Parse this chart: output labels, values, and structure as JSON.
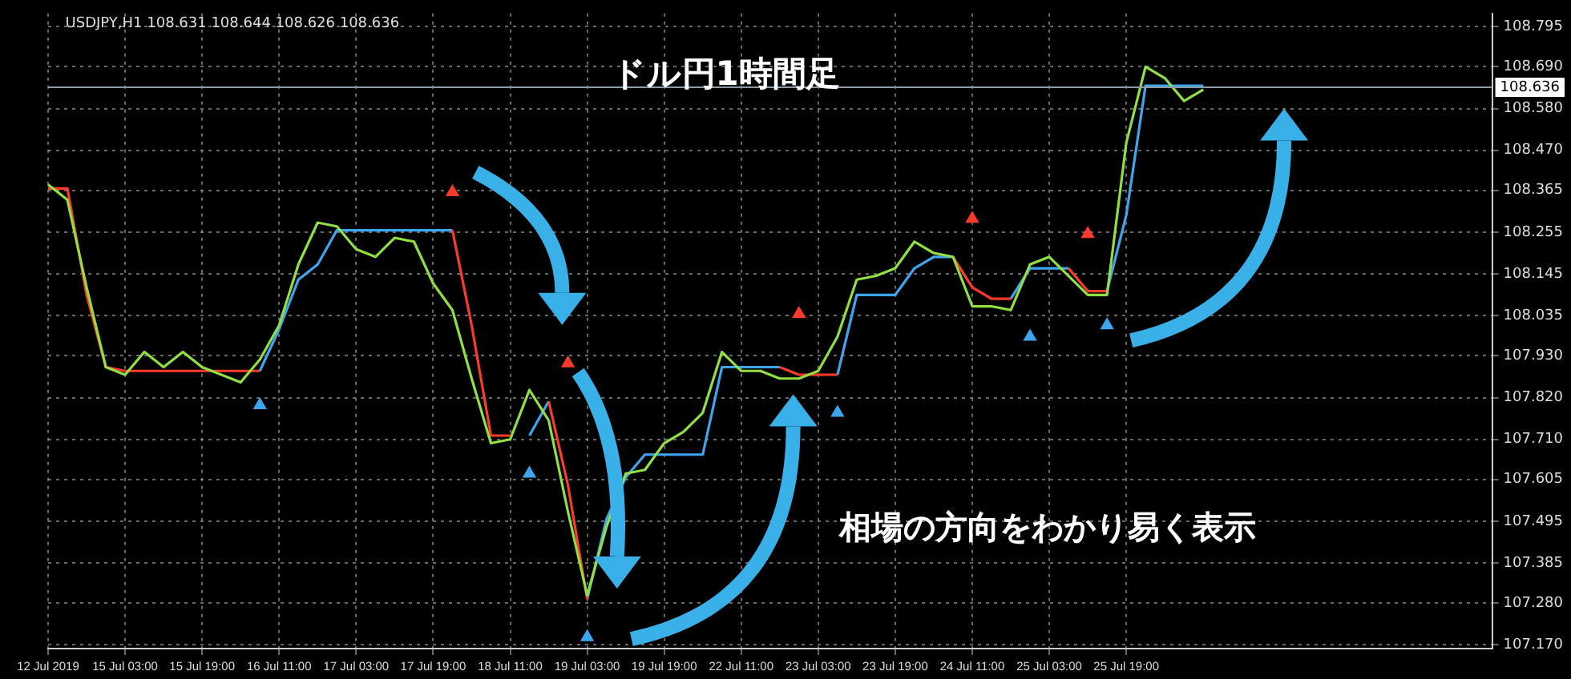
{
  "chart_data": {
    "type": "line",
    "title": "ドル円1時間足",
    "annotations": [
      "USDJPY,H1  108.631 108.644 108.626 108.636",
      "相場の方向をわかり易く表示"
    ],
    "categories": [
      "12 Jul 2019",
      null,
      null,
      null,
      "15 Jul 03:00",
      null,
      null,
      null,
      "15 Jul 19:00",
      null,
      null,
      null,
      "16 Jul 11:00",
      null,
      null,
      null,
      "17 Jul 03:00",
      null,
      null,
      null,
      "17 Jul 19:00",
      null,
      null,
      null,
      "18 Jul 11:00",
      null,
      null,
      null,
      "19 Jul 03:00",
      null,
      null,
      null,
      "19 Jul 19:00",
      null,
      null,
      null,
      "22 Jul 11:00",
      null,
      null,
      null,
      "23 Jul 03:00",
      null,
      null,
      null,
      "23 Jul 19:00",
      null,
      null,
      null,
      "24 Jul 11:00",
      null,
      null,
      null,
      "25 Jul 03:00",
      null,
      null,
      null,
      "25 Jul 19:00",
      null,
      null,
      null,
      null,
      null,
      null,
      null,
      null,
      null,
      null,
      null,
      null,
      null,
      null,
      null,
      null,
      null,
      null,
      null
    ],
    "series": [
      {
        "color": "#8fe040",
        "values": [
          108.38,
          108.34,
          108.11,
          107.9,
          107.88,
          107.94,
          107.9,
          107.94,
          107.9,
          107.88,
          107.86,
          107.92,
          108.01,
          108.17,
          108.28,
          108.27,
          108.21,
          108.19,
          108.24,
          108.23,
          108.12,
          108.05,
          107.87,
          107.7,
          107.71,
          107.84,
          107.76,
          107.52,
          107.3,
          107.48,
          107.62,
          107.63,
          107.7,
          107.73,
          107.78,
          107.94,
          107.89,
          107.89,
          107.87,
          107.87,
          107.89,
          107.98,
          108.13,
          108.14,
          108.16,
          108.23,
          108.2,
          108.19,
          108.06,
          108.06,
          108.05,
          108.17,
          108.19,
          108.14,
          108.09,
          108.09,
          108.49,
          108.69,
          108.66,
          108.6,
          108.63,
          null,
          null,
          null,
          null,
          null,
          null,
          null,
          null,
          null,
          null,
          null,
          null,
          null,
          null,
          null
        ]
      },
      {
        "color": "#ff3a2a",
        "values": [
          108.37,
          108.37,
          108.09,
          107.9,
          107.89,
          107.89,
          107.89,
          107.89,
          107.89,
          107.89,
          107.89,
          107.89,
          null,
          null,
          null,
          null,
          null,
          null,
          null,
          null,
          null,
          108.26,
          108.01,
          107.72,
          107.72,
          null,
          107.81,
          107.59,
          107.29,
          null,
          null,
          null,
          null,
          null,
          null,
          null,
          null,
          null,
          107.9,
          107.88,
          107.88,
          107.88,
          null,
          null,
          null,
          null,
          null,
          108.19,
          108.11,
          108.08,
          108.08,
          null,
          null,
          108.16,
          108.1,
          108.1,
          null,
          null,
          null,
          null,
          null,
          null,
          null,
          null,
          null,
          null,
          null,
          null,
          null,
          null,
          null,
          null,
          null,
          null,
          null,
          null
        ]
      },
      {
        "color": "#3ea6f0",
        "values": [
          null,
          null,
          null,
          null,
          null,
          null,
          null,
          null,
          null,
          null,
          null,
          107.89,
          108.0,
          108.13,
          108.17,
          108.26,
          108.26,
          108.26,
          108.26,
          108.26,
          108.26,
          108.26,
          null,
          null,
          null,
          107.72,
          107.81,
          null,
          107.29,
          107.5,
          107.61,
          107.67,
          107.67,
          107.67,
          107.67,
          107.9,
          107.9,
          107.9,
          107.9,
          null,
          null,
          107.88,
          108.09,
          108.09,
          108.09,
          108.16,
          108.19,
          108.19,
          null,
          null,
          108.08,
          108.16,
          108.16,
          108.16,
          null,
          108.1,
          108.3,
          108.64,
          108.64,
          108.64,
          108.64,
          null,
          null,
          null,
          null,
          null,
          null,
          null,
          null,
          null,
          null,
          null,
          null,
          null,
          null,
          null
        ]
      },
      {
        "type": "scatter",
        "marker": "triangle",
        "color": "#3ea6f0",
        "values": [
          null,
          null,
          null,
          null,
          null,
          null,
          null,
          null,
          null,
          null,
          null,
          107.8,
          null,
          null,
          null,
          null,
          null,
          null,
          null,
          null,
          null,
          null,
          null,
          null,
          null,
          107.62,
          null,
          null,
          107.19,
          null,
          null,
          null,
          null,
          null,
          null,
          null,
          null,
          null,
          null,
          null,
          null,
          107.78,
          null,
          null,
          null,
          null,
          null,
          null,
          null,
          null,
          null,
          107.98,
          null,
          null,
          null,
          108.01,
          null,
          null,
          null,
          null,
          null,
          null,
          null,
          null,
          null,
          null,
          null,
          null,
          null,
          null,
          null,
          null,
          null,
          null,
          null,
          null
        ]
      },
      {
        "type": "scatter",
        "marker": "triangle",
        "color": "#ff3a2a",
        "values": [
          null,
          null,
          null,
          null,
          null,
          null,
          null,
          null,
          null,
          null,
          null,
          null,
          null,
          null,
          null,
          null,
          null,
          null,
          null,
          null,
          null,
          108.36,
          null,
          null,
          null,
          null,
          null,
          107.91,
          null,
          null,
          null,
          null,
          null,
          null,
          null,
          null,
          null,
          null,
          null,
          108.04,
          null,
          null,
          null,
          null,
          null,
          null,
          null,
          null,
          108.29,
          null,
          null,
          null,
          null,
          null,
          108.25,
          null,
          null,
          null,
          null,
          null,
          null,
          null,
          null,
          null,
          null,
          null,
          null,
          null,
          null,
          null,
          null,
          null,
          null,
          null,
          null,
          null
        ]
      }
    ],
    "ylim": [
      107.16,
      108.83
    ],
    "yticks": [
      108.795,
      {
        "value": 108.69,
        "label": "108.690"
      },
      {
        "value": 108.58,
        "label": "108.580"
      },
      {
        "value": 108.47,
        "label": "108.470"
      },
      108.365,
      108.255,
      108.145,
      108.035,
      {
        "value": 107.93,
        "label": "107.930"
      },
      {
        "value": 107.82,
        "label": "107.820"
      },
      {
        "value": 107.71,
        "label": "107.710"
      },
      107.605,
      107.495,
      107.385,
      {
        "value": 107.28,
        "label": "107.280"
      },
      {
        "value": 107.17,
        "label": "107.170"
      }
    ],
    "ref_lines": [
      {
        "axis": "y",
        "value": 108.636,
        "label": "108.636",
        "color": "#8c9aa8"
      }
    ],
    "grid": true,
    "legend": false,
    "marker": "none",
    "line_style": "solid"
  }
}
